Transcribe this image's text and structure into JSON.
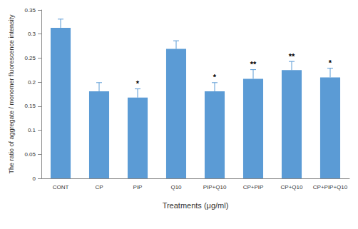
{
  "chart_data": {
    "type": "bar",
    "x_label": "Treatments (μg/ml)",
    "y_label": "The ratio of aggregate / monomer fluorescence intensity",
    "categories": [
      "CONT",
      "CP",
      "PIP",
      "Q10",
      "PIP+Q10",
      "CP+PIP",
      "CP+Q10",
      "CP+PIP+Q10"
    ],
    "values": [
      0.313,
      0.181,
      0.168,
      0.269,
      0.181,
      0.207,
      0.225,
      0.21
    ],
    "errors": [
      0.018,
      0.018,
      0.018,
      0.017,
      0.018,
      0.019,
      0.018,
      0.019
    ],
    "annotations": [
      null,
      null,
      "*",
      null,
      "*",
      "**",
      "**",
      "*"
    ],
    "color": "#5b9bd5",
    "ylim": [
      0,
      0.35
    ],
    "yticks": [
      0,
      0.05,
      0.1,
      0.15,
      0.2,
      0.25,
      0.3,
      0.35
    ],
    "grid": false
  }
}
